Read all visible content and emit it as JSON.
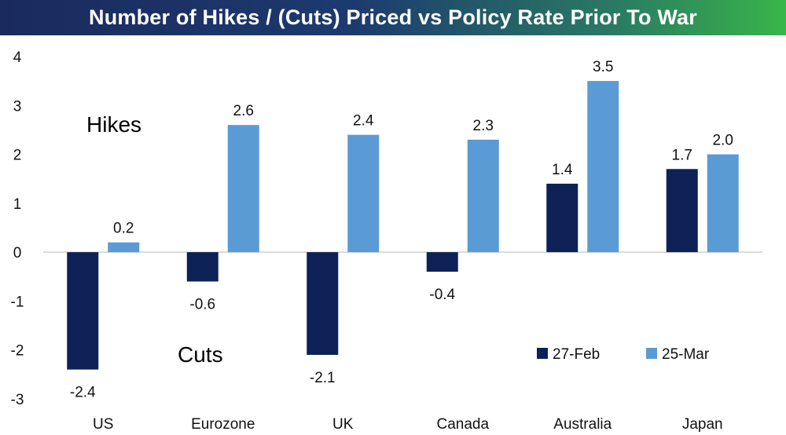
{
  "chart_data": {
    "type": "bar",
    "title": "Number of Hikes / (Cuts) Priced vs Policy Rate Prior To War",
    "categories": [
      "US",
      "Eurozone",
      "UK",
      "Canada",
      "Australia",
      "Japan"
    ],
    "series": [
      {
        "name": "27-Feb",
        "color": "#0d2157",
        "values": [
          -2.4,
          -0.6,
          -2.1,
          -0.4,
          1.4,
          1.7
        ],
        "labels": [
          "-2.4",
          "-0.6",
          "-2.1",
          "-0.4",
          "1.4",
          "1.7"
        ]
      },
      {
        "name": "25-Mar",
        "color": "#5b9bd5",
        "values": [
          0.2,
          2.6,
          2.4,
          2.3,
          3.5,
          2.0
        ],
        "labels": [
          "0.2",
          "2.6",
          "2.4",
          "2.3",
          "3.5",
          "2.0"
        ]
      }
    ],
    "ylim": [
      -3,
      4
    ],
    "yticks": [
      "-3",
      "-2",
      "-1",
      "0",
      "1",
      "2",
      "3",
      "4"
    ],
    "annotations": {
      "hikes": "Hikes",
      "cuts": "Cuts"
    },
    "legend_position": "bottom-right",
    "grid": false
  }
}
